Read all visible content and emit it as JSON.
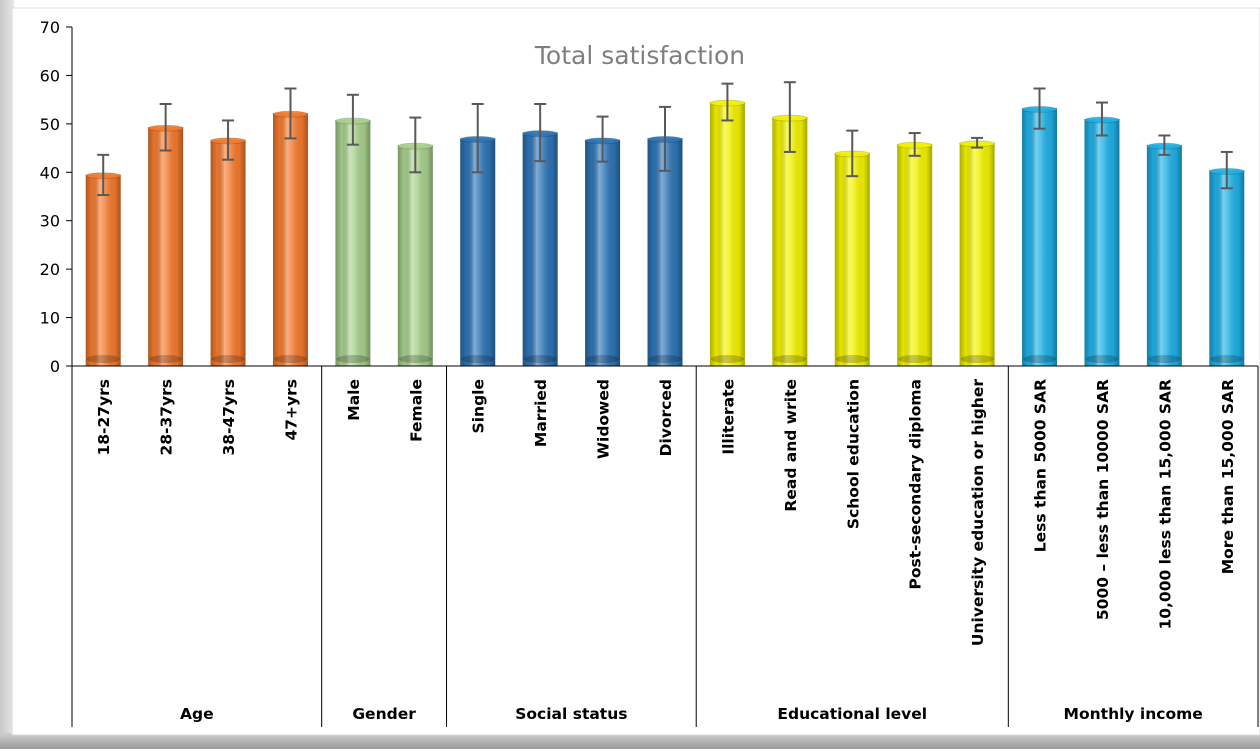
{
  "chart_data": {
    "type": "bar",
    "title": "Total satisfaction",
    "ylim": [
      0,
      70
    ],
    "yticks": [
      0,
      10,
      20,
      30,
      40,
      50,
      60,
      70
    ],
    "grid": false,
    "error_bars": true,
    "groups": [
      {
        "name": "Age",
        "color": "#F47A2E",
        "categories": [
          "18-27yrs",
          "28-37yrs",
          "38-47yrs",
          "47+yrs"
        ]
      },
      {
        "name": "Gender",
        "color": "#A8D08D",
        "categories": [
          "Male",
          "Female"
        ]
      },
      {
        "name": "Social status",
        "color": "#2E75B6",
        "categories": [
          "Single",
          "Married",
          "Widowed",
          "Divorced"
        ]
      },
      {
        "name": "Educational level",
        "color": "#F2F200",
        "categories": [
          "Illiterate",
          "Read and write",
          "School education",
          "Post-secondary diploma",
          "University education or higher"
        ]
      },
      {
        "name": "Monthly income",
        "color": "#1FB0E6",
        "categories": [
          "Less than 5000 SAR",
          "5000 – less than 10000 SAR",
          "10,000 less than 15,000 SAR",
          "More than 15,000 SAR"
        ]
      }
    ],
    "categories": [
      "18-27yrs",
      "28-37yrs",
      "38-47yrs",
      "47+yrs",
      "Male",
      "Female",
      "Single",
      "Married",
      "Widowed",
      "Divorced",
      "Illiterate",
      "Read and write",
      "School education",
      "Post-secondary diploma",
      "University education or higher",
      "Less than 5000 SAR",
      "5000 – less than 10000 SAR",
      "10,000 less than 15,000 SAR",
      "More than 15,000 SAR"
    ],
    "values": [
      39.5,
      49.3,
      46.7,
      52.2,
      50.8,
      45.6,
      47.0,
      48.2,
      46.7,
      47.0,
      54.5,
      51.4,
      44.0,
      45.8,
      46.1,
      53.2,
      51.0,
      45.6,
      40.4
    ],
    "error_low": [
      35.3,
      44.5,
      42.6,
      47.0,
      45.7,
      40.0,
      40.0,
      42.3,
      42.2,
      40.3,
      50.7,
      44.2,
      39.2,
      43.4,
      45.1,
      49.0,
      47.6,
      43.6,
      36.7
    ],
    "error_high": [
      43.6,
      54.1,
      50.7,
      57.3,
      56.0,
      51.3,
      54.1,
      54.1,
      51.5,
      53.5,
      58.3,
      58.6,
      48.6,
      48.1,
      47.1,
      57.3,
      54.4,
      47.6,
      44.2
    ]
  }
}
